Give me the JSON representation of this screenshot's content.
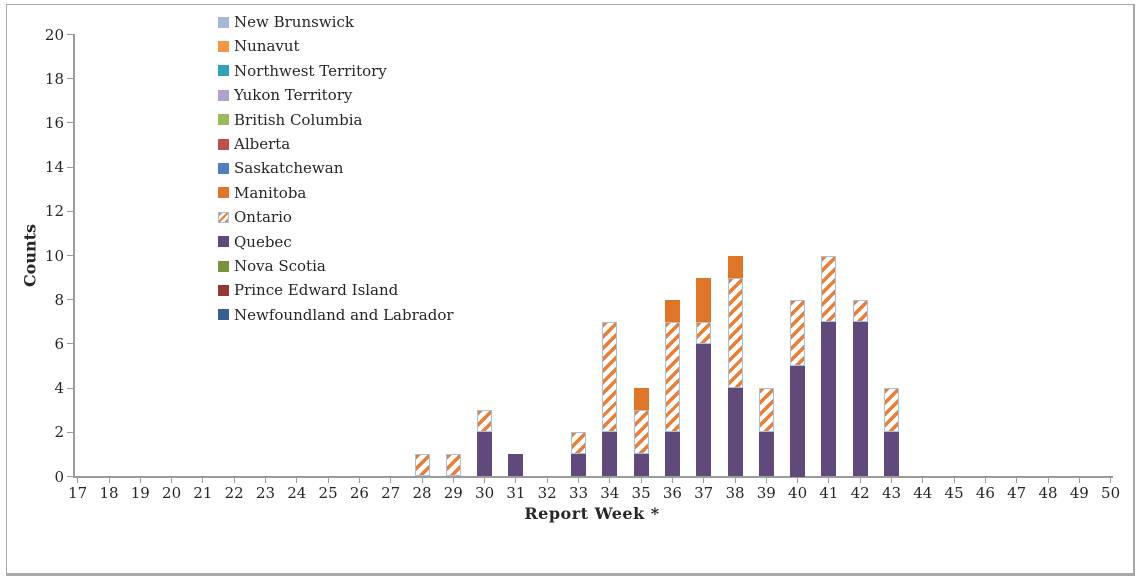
{
  "chart_data": {
    "type": "bar",
    "stacked": true,
    "title": "",
    "xlabel": "Report Week *",
    "ylabel": "Counts",
    "x": [
      17,
      18,
      19,
      20,
      21,
      22,
      23,
      24,
      25,
      26,
      27,
      28,
      29,
      30,
      31,
      32,
      33,
      34,
      35,
      36,
      37,
      38,
      39,
      40,
      41,
      42,
      43,
      44,
      45,
      46,
      47,
      48,
      49,
      50
    ],
    "ylim": [
      0,
      20
    ],
    "yticks": [
      0,
      2,
      4,
      6,
      8,
      10,
      12,
      14,
      16,
      18,
      20
    ],
    "grid": false,
    "legend_position": "inside-top-left",
    "axis_color": "#9b9b9b",
    "text_color": "#262626",
    "legend": [
      {
        "name": "New Brunswick",
        "color": "#a5b8d9"
      },
      {
        "name": "Nunavut",
        "color": "#f79646"
      },
      {
        "name": "Northwest Territory",
        "color": "#31a2b8"
      },
      {
        "name": "Yukon Territory",
        "color": "#b3a2c7"
      },
      {
        "name": "British Columbia",
        "color": "#9bbb59"
      },
      {
        "name": "Alberta",
        "color": "#c0504d"
      },
      {
        "name": "Saskatchewan",
        "color": "#4f81bd"
      },
      {
        "name": "Manitoba",
        "color": "#de7527"
      },
      {
        "name": "Ontario",
        "color": "#ed7d31",
        "pattern": "diagonal-stripes",
        "pattern_bg": "#ffffff",
        "pattern_border": "#9dc3e6"
      },
      {
        "name": "Quebec",
        "color": "#604a7b"
      },
      {
        "name": "Nova Scotia",
        "color": "#77933c"
      },
      {
        "name": "Prince Edward Island",
        "color": "#953735"
      },
      {
        "name": "Newfoundland and Labrador",
        "color": "#376092"
      }
    ],
    "stack_order": "bottom-to-top",
    "series": [
      {
        "name": "Quebec",
        "values": [
          0,
          0,
          0,
          0,
          0,
          0,
          0,
          0,
          0,
          0,
          0,
          0,
          0,
          2,
          1,
          0,
          1,
          2,
          1,
          2,
          6,
          4,
          2,
          5,
          7,
          7,
          2,
          0,
          0,
          0,
          0,
          0,
          0,
          0
        ]
      },
      {
        "name": "Ontario",
        "values": [
          0,
          0,
          0,
          0,
          0,
          0,
          0,
          0,
          0,
          0,
          0,
          1,
          1,
          1,
          0,
          0,
          1,
          5,
          2,
          5,
          1,
          5,
          2,
          3,
          3,
          1,
          2,
          0,
          0,
          0,
          0,
          0,
          0,
          0
        ]
      },
      {
        "name": "Manitoba",
        "values": [
          0,
          0,
          0,
          0,
          0,
          0,
          0,
          0,
          0,
          0,
          0,
          0,
          0,
          0,
          0,
          0,
          0,
          0,
          1,
          1,
          2,
          1,
          0,
          0,
          0,
          0,
          0,
          0,
          0,
          0,
          0,
          0,
          0,
          0
        ]
      }
    ]
  }
}
